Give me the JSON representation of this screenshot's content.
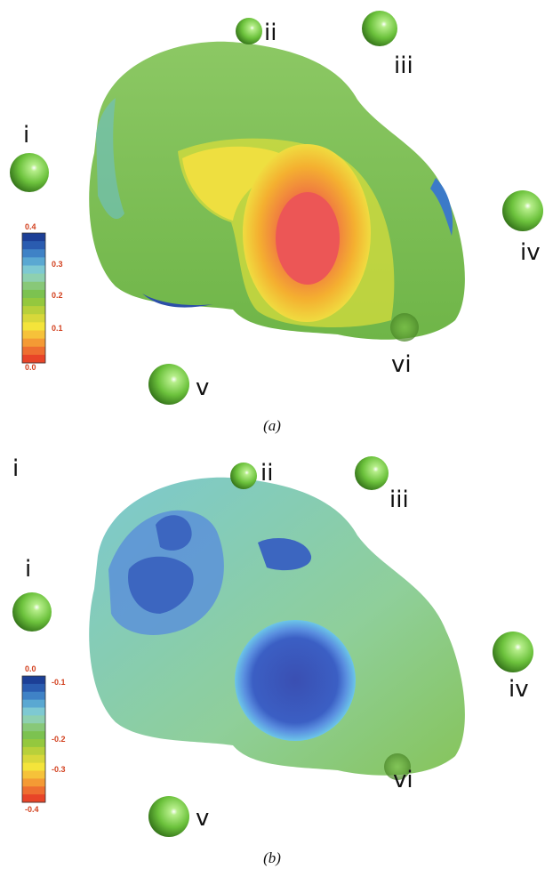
{
  "panels": [
    {
      "caption": "(a)",
      "atom_labels": [
        "i",
        "ii",
        "iii",
        "iv",
        "v",
        "vi"
      ],
      "colorbar_ticks": [
        "0.4",
        "0.3",
        "0.2",
        "0.1",
        "0.0"
      ]
    },
    {
      "caption": "(b)",
      "atom_labels": [
        "i",
        "i",
        "ii",
        "iii",
        "iv",
        "v",
        "vi"
      ],
      "colorbar_ticks": [
        "0.0",
        "-0.1",
        "-0.2",
        "-0.3",
        "-0.4"
      ]
    }
  ]
}
